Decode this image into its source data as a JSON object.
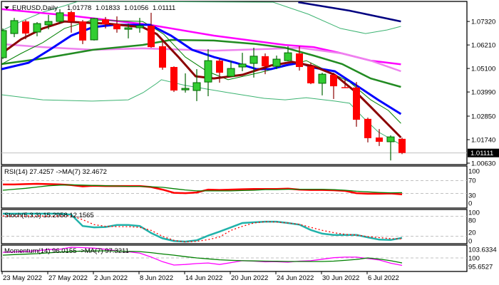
{
  "header": {
    "symbol": "EURUSD,Daily",
    "open": "1.01778",
    "high": "1.01833",
    "low": "1.01056",
    "close": "1.01111"
  },
  "current_price_label": "1.01111",
  "colors": {
    "bull": "#32cd32",
    "bull_edge": "#006400",
    "bear": "#ff0000",
    "bear_edge": "#8b0000",
    "price_box": "#000000"
  },
  "chart_data": [
    {
      "type": "candlestick",
      "title": "EURUSD,Daily",
      "ylim": [
        1.0063,
        1.0832
      ],
      "y_ticks": [
        "1.07320",
        "1.06210",
        "1.05100",
        "1.03990",
        "1.02850",
        "1.01740",
        "1.00630"
      ],
      "x_labels": [
        {
          "index": 1,
          "label": "23 May 2022"
        },
        {
          "index": 5,
          "label": "27 May 2022"
        },
        {
          "index": 9,
          "label": "2 Jun 2022"
        },
        {
          "index": 13,
          "label": "8 Jun 2022"
        },
        {
          "index": 17,
          "label": "14 Jun 2022"
        },
        {
          "index": 21,
          "label": "20 Jun 2022"
        },
        {
          "index": 25,
          "label": "24 Jun 2022"
        },
        {
          "index": 29,
          "label": "30 Jun 2022"
        },
        {
          "index": 33,
          "label": "6 Jul 2022"
        }
      ],
      "ohlc": [
        [
          1.0561,
          1.0699,
          1.0554,
          1.0689
        ],
        [
          1.0675,
          1.0749,
          1.0658,
          1.0736
        ],
        [
          1.0732,
          1.0739,
          1.0648,
          1.0675
        ],
        [
          1.0682,
          1.0729,
          1.0662,
          1.0722
        ],
        [
          1.0716,
          1.0763,
          1.0695,
          1.0732
        ],
        [
          1.0732,
          1.079,
          1.0722,
          1.0773
        ],
        [
          1.0776,
          1.0783,
          1.0679,
          1.0732
        ],
        [
          1.0732,
          1.0739,
          1.0625,
          1.0642
        ],
        [
          1.0645,
          1.0749,
          1.0642,
          1.0746
        ],
        [
          1.0742,
          1.0753,
          1.0699,
          1.0719
        ],
        [
          1.0719,
          1.0756,
          1.0679,
          1.0695
        ],
        [
          1.0695,
          1.0722,
          1.0652,
          1.0702
        ],
        [
          1.0702,
          1.0749,
          1.0679,
          1.0712
        ],
        [
          1.0712,
          1.0773,
          1.0608,
          1.0611
        ],
        [
          1.0615,
          1.0638,
          1.0504,
          1.0514
        ],
        [
          1.0517,
          1.052,
          1.0399,
          1.0406
        ],
        [
          1.0409,
          1.0487,
          1.0396,
          1.0416
        ],
        [
          1.0406,
          1.0507,
          1.0356,
          1.0443
        ],
        [
          1.0446,
          1.0601,
          1.0379,
          1.0547
        ],
        [
          1.0547,
          1.0557,
          1.0443,
          1.049
        ],
        [
          1.0473,
          1.0547,
          1.0473,
          1.051
        ],
        [
          1.0517,
          1.0584,
          1.0497,
          1.0531
        ],
        [
          1.0534,
          1.0608,
          1.0467,
          1.0568
        ],
        [
          1.0568,
          1.0581,
          1.0483,
          1.052
        ],
        [
          1.052,
          1.0571,
          1.0507,
          1.0554
        ],
        [
          1.0547,
          1.0615,
          1.0544,
          1.0584
        ],
        [
          1.0581,
          1.0615,
          1.05,
          1.0517
        ],
        [
          1.052,
          1.0537,
          1.0436,
          1.044
        ],
        [
          1.044,
          1.049,
          1.0383,
          1.0483
        ],
        [
          1.048,
          1.049,
          1.0366,
          1.0426
        ],
        [
          1.0422,
          1.0457,
          1.0418,
          1.0418
        ],
        [
          1.042,
          1.0446,
          1.0235,
          1.0268
        ],
        [
          1.0272,
          1.0278,
          1.0161,
          1.0181
        ],
        [
          1.0184,
          1.0224,
          1.0144,
          1.0164
        ],
        [
          1.0164,
          1.0194,
          1.0076,
          1.0187
        ],
        [
          1.01778,
          1.01833,
          1.01056,
          1.01111
        ]
      ],
      "overlays": [
        {
          "name": "ma-navy",
          "color": "#000080",
          "width": 2.5,
          "points": [
            [
              26.9,
              1.0823
            ],
            [
              31.4,
              1.0783
            ],
            [
              35.9,
              1.0732
            ]
          ]
        },
        {
          "name": "bollinger-upper",
          "color": "#3cb371",
          "width": 1,
          "points": [
            [
              0.9,
              1.0689
            ],
            [
              2.6,
              1.0732
            ],
            [
              4.5,
              1.0776
            ],
            [
              6.4,
              1.0806
            ],
            [
              7.6,
              1.0827
            ],
            [
              24.7,
              1.0823
            ],
            [
              27.8,
              1.0766
            ],
            [
              30.6,
              1.0699
            ],
            [
              32.8,
              1.0675
            ],
            [
              34.7,
              1.0692
            ],
            [
              35.9,
              1.0709
            ]
          ]
        },
        {
          "name": "bollinger-lower",
          "color": "#3cb371",
          "width": 1,
          "points": [
            [
              0.9,
              1.0386
            ],
            [
              4.5,
              1.0362
            ],
            [
              8.9,
              1.0356
            ],
            [
              12,
              1.0362
            ],
            [
              13.3,
              1.0396
            ],
            [
              14.5,
              1.044
            ],
            [
              14.9,
              1.0457
            ],
            [
              17,
              1.043
            ],
            [
              20.75,
              1.0396
            ],
            [
              23.9,
              1.0369
            ],
            [
              25.75,
              1.0362
            ],
            [
              27.6,
              1.0372
            ],
            [
              30.1,
              1.0356
            ],
            [
              31.4,
              1.0346
            ],
            [
              32.6,
              1.0278
            ],
            [
              33.9,
              1.0211
            ],
            [
              35.9,
              1.015
            ]
          ]
        },
        {
          "name": "ma-magenta",
          "color": "#ff00ff",
          "width": 2.5,
          "points": [
            [
              0.9,
              1.079
            ],
            [
              7,
              1.0759
            ],
            [
              13.9,
              1.0716
            ],
            [
              19.5,
              1.0665
            ],
            [
              25.75,
              1.0621
            ],
            [
              28.25,
              1.0611
            ],
            [
              30.75,
              1.0581
            ],
            [
              33.25,
              1.0547
            ],
            [
              35.9,
              1.053
            ]
          ]
        },
        {
          "name": "ma-violet",
          "color": "#ee82ee",
          "width": 2.5,
          "points": [
            [
              0.9,
              1.0625
            ],
            [
              4.5,
              1.0611
            ],
            [
              8.9,
              1.0598
            ],
            [
              13.25,
              1.0605
            ],
            [
              19.5,
              1.0594
            ],
            [
              25.75,
              1.0605
            ],
            [
              27,
              1.0608
            ],
            [
              30.75,
              1.0581
            ],
            [
              33.25,
              1.0547
            ],
            [
              35.9,
              1.0497
            ]
          ]
        },
        {
          "name": "ma-green-thick",
          "color": "#228b22",
          "width": 2.5,
          "points": [
            [
              0.9,
              1.0531
            ],
            [
              4.5,
              1.0557
            ],
            [
              8.9,
              1.0598
            ],
            [
              13.25,
              1.0621
            ],
            [
              15.75,
              1.0645
            ],
            [
              19.5,
              1.0642
            ],
            [
              23.25,
              1.0625
            ],
            [
              25.75,
              1.0608
            ],
            [
              28.25,
              1.0571
            ],
            [
              30.75,
              1.0531
            ],
            [
              33.25,
              1.0463
            ],
            [
              35.9,
              1.0423
            ]
          ]
        },
        {
          "name": "ma-green-thin",
          "color": "#008000",
          "width": 1,
          "points": [
            [
              0.9,
              1.0531
            ],
            [
              2.6,
              1.0581
            ],
            [
              4.5,
              1.0632
            ],
            [
              6.4,
              1.0699
            ],
            [
              8.9,
              1.0739
            ],
            [
              13.25,
              1.0732
            ],
            [
              13.9,
              1.0712
            ],
            [
              15.1,
              1.0672
            ],
            [
              17,
              1.0564
            ],
            [
              18.9,
              1.0497
            ],
            [
              20.75,
              1.0457
            ],
            [
              23.25,
              1.0487
            ],
            [
              25.75,
              1.052
            ],
            [
              27.6,
              1.0547
            ],
            [
              29.5,
              1.0497
            ],
            [
              31.4,
              1.0446
            ],
            [
              33.25,
              1.0362
            ],
            [
              34.8,
              1.0312
            ],
            [
              35.9,
              1.0251
            ]
          ]
        },
        {
          "name": "ma-blue",
          "color": "#0000ff",
          "width": 3,
          "points": [
            [
              0.9,
              1.0507
            ],
            [
              3.25,
              1.0537
            ],
            [
              5.1,
              1.0598
            ],
            [
              7,
              1.0665
            ],
            [
              8.9,
              1.0705
            ],
            [
              10.75,
              1.0716
            ],
            [
              13.9,
              1.0716
            ],
            [
              15.75,
              1.0665
            ],
            [
              17.6,
              1.0598
            ],
            [
              19.5,
              1.0564
            ],
            [
              21.4,
              1.0537
            ],
            [
              23.25,
              1.0507
            ],
            [
              24.5,
              1.0507
            ],
            [
              25.75,
              1.0524
            ],
            [
              27,
              1.0537
            ],
            [
              28.25,
              1.0514
            ],
            [
              30.1,
              1.0497
            ],
            [
              32,
              1.043
            ],
            [
              33.9,
              1.0362
            ],
            [
              35.9,
              1.0295
            ]
          ]
        },
        {
          "name": "ma-maroon",
          "color": "#8b0000",
          "width": 3,
          "points": [
            [
              0.9,
              1.0581
            ],
            [
              2.6,
              1.0648
            ],
            [
              4.5,
              1.0699
            ],
            [
              6.4,
              1.0732
            ],
            [
              8.25,
              1.0726
            ],
            [
              10.1,
              1.0722
            ],
            [
              13.25,
              1.0705
            ],
            [
              14.5,
              1.0672
            ],
            [
              16.4,
              1.0564
            ],
            [
              17.9,
              1.0473
            ],
            [
              19.5,
              1.0463
            ],
            [
              22,
              1.048
            ],
            [
              24.5,
              1.0524
            ],
            [
              26.4,
              1.0541
            ],
            [
              28.25,
              1.052
            ],
            [
              30.1,
              1.048
            ],
            [
              32,
              1.0396
            ],
            [
              33.25,
              1.0329
            ],
            [
              35.9,
              1.0184
            ]
          ]
        }
      ]
    },
    {
      "type": "line",
      "title": "RSI(14) 27.4257  ->MA(7) 32.4672",
      "ylim": [
        0,
        100
      ],
      "y_ticks": [
        "100",
        "70",
        "30",
        "0"
      ],
      "levels": [
        70,
        30
      ],
      "series": [
        {
          "name": "RSI",
          "color": "#ff0000",
          "width": 2.5,
          "dashed": false,
          "values": [
            58,
            58,
            59,
            60,
            59,
            58,
            56,
            52,
            54,
            53,
            53,
            53,
            53,
            50,
            42,
            32,
            31,
            33,
            42,
            41,
            42,
            43,
            44,
            44,
            44,
            45,
            42,
            41,
            41,
            40,
            38,
            31,
            29,
            29,
            30,
            27.4257
          ]
        },
        {
          "name": "MA",
          "color": "#008000",
          "width": 1.3,
          "dashed": false,
          "values": [
            40,
            43,
            46,
            50,
            54,
            56,
            57,
            56,
            55,
            54,
            53,
            52,
            52,
            51,
            49,
            45,
            41,
            38,
            38,
            38,
            38,
            39,
            40,
            42,
            42,
            43,
            43,
            43,
            43,
            42,
            40,
            37,
            35,
            33,
            32,
            32.4672
          ]
        }
      ]
    },
    {
      "type": "line",
      "title": "Stoch(5,3,3) 15.2958 12.1565",
      "ylim": [
        0,
        100
      ],
      "y_ticks": [
        "100",
        "80",
        "20",
        "0"
      ],
      "levels": [
        80,
        20
      ],
      "series": [
        {
          "name": "Main",
          "color": "#20b2aa",
          "width": 2.5,
          "dashed": false,
          "values": [
            88,
            88,
            88,
            88,
            88,
            88,
            85,
            51,
            47,
            48,
            54,
            54,
            51,
            30,
            14,
            6,
            4,
            8,
            22,
            34,
            47,
            60,
            62,
            64,
            64,
            60,
            55,
            39,
            28,
            24,
            24,
            24,
            17,
            10,
            9,
            15.2958
          ]
        },
        {
          "name": "Signal",
          "color": "#ff0000",
          "width": 1.3,
          "dashed": true,
          "values": [
            81,
            81,
            81,
            81,
            81,
            81,
            82,
            70,
            55,
            50,
            49,
            49,
            47,
            38,
            20,
            8,
            3,
            5,
            10,
            18,
            38,
            50,
            60,
            64,
            63,
            60,
            56,
            47,
            38,
            31,
            26,
            24,
            19,
            16,
            13,
            12.1565
          ]
        }
      ]
    },
    {
      "type": "line",
      "title": "Momentum(14) 96.0155  ->MA(7) 97.3211",
      "ylim": [
        94.5,
        105.5
      ],
      "y_ticks": [
        "103.6334",
        "100",
        "95.6527"
      ],
      "levels": [
        100
      ],
      "series": [
        {
          "name": "Momentum",
          "color": "#ff00ff",
          "width": 1.3,
          "dashed": false,
          "values": [
            103,
            103.2,
            103.5,
            103.8,
            104.5,
            104.6,
            105.7,
            105.5,
            105.2,
            104.6,
            103.8,
            103.3,
            102.6,
            100.5,
            98,
            96.2,
            96.5,
            97,
            97.3,
            96.5,
            97.5,
            98.5,
            98.3,
            97.9,
            98,
            97.7,
            98.3,
            98.5,
            99.3,
            100.1,
            100.4,
            100.4,
            99.7,
            98.9,
            97.2,
            96.0155
          ]
        },
        {
          "name": "MA",
          "color": "#008000",
          "width": 1.3,
          "dashed": false,
          "values": [
            101.5,
            101.8,
            102,
            102.3,
            102.7,
            103.1,
            103.5,
            103.6,
            103.7,
            103.8,
            103.7,
            103.5,
            103.4,
            102.8,
            102.1,
            101.5,
            100.7,
            100,
            99.5,
            99,
            98.7,
            98.5,
            98.4,
            98.3,
            98.2,
            98.1,
            98.1,
            98.1,
            98.1,
            98.3,
            98.7,
            99.2,
            100,
            99.4,
            98.5,
            97.3211
          ]
        }
      ]
    }
  ]
}
